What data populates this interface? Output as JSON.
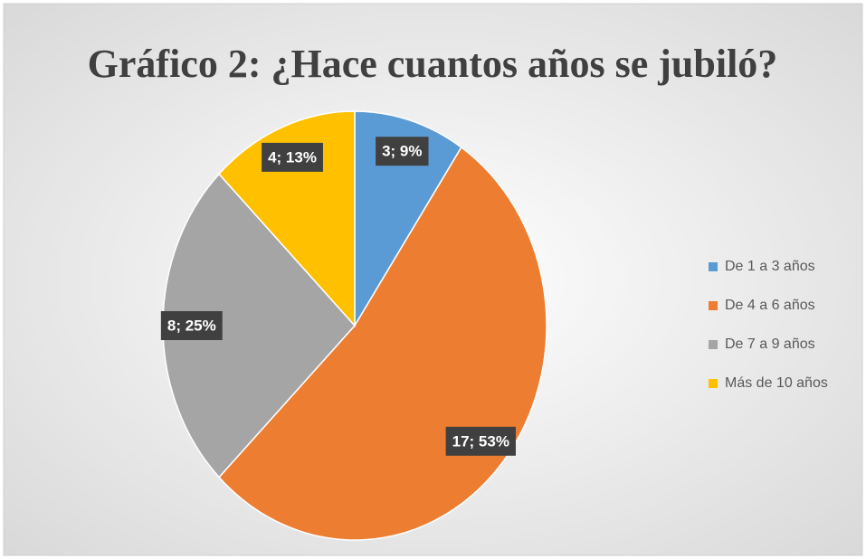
{
  "chart_data": {
    "type": "pie",
    "title": "Gráfico 2: ¿Hace cuantos años se jubiló?",
    "categories": [
      "De 1 a 3 años",
      "De 4 a 6 años",
      "De 7 a 9 años",
      "Más de 10 años"
    ],
    "values": [
      3,
      17,
      8,
      4
    ],
    "value_labels": [
      "3; 9%",
      "17; 53%",
      "8; 25%",
      "4; 13%"
    ],
    "colors": [
      "#5b9bd5",
      "#ed7d31",
      "#a5a5a5",
      "#ffc000"
    ],
    "legend": "right"
  }
}
